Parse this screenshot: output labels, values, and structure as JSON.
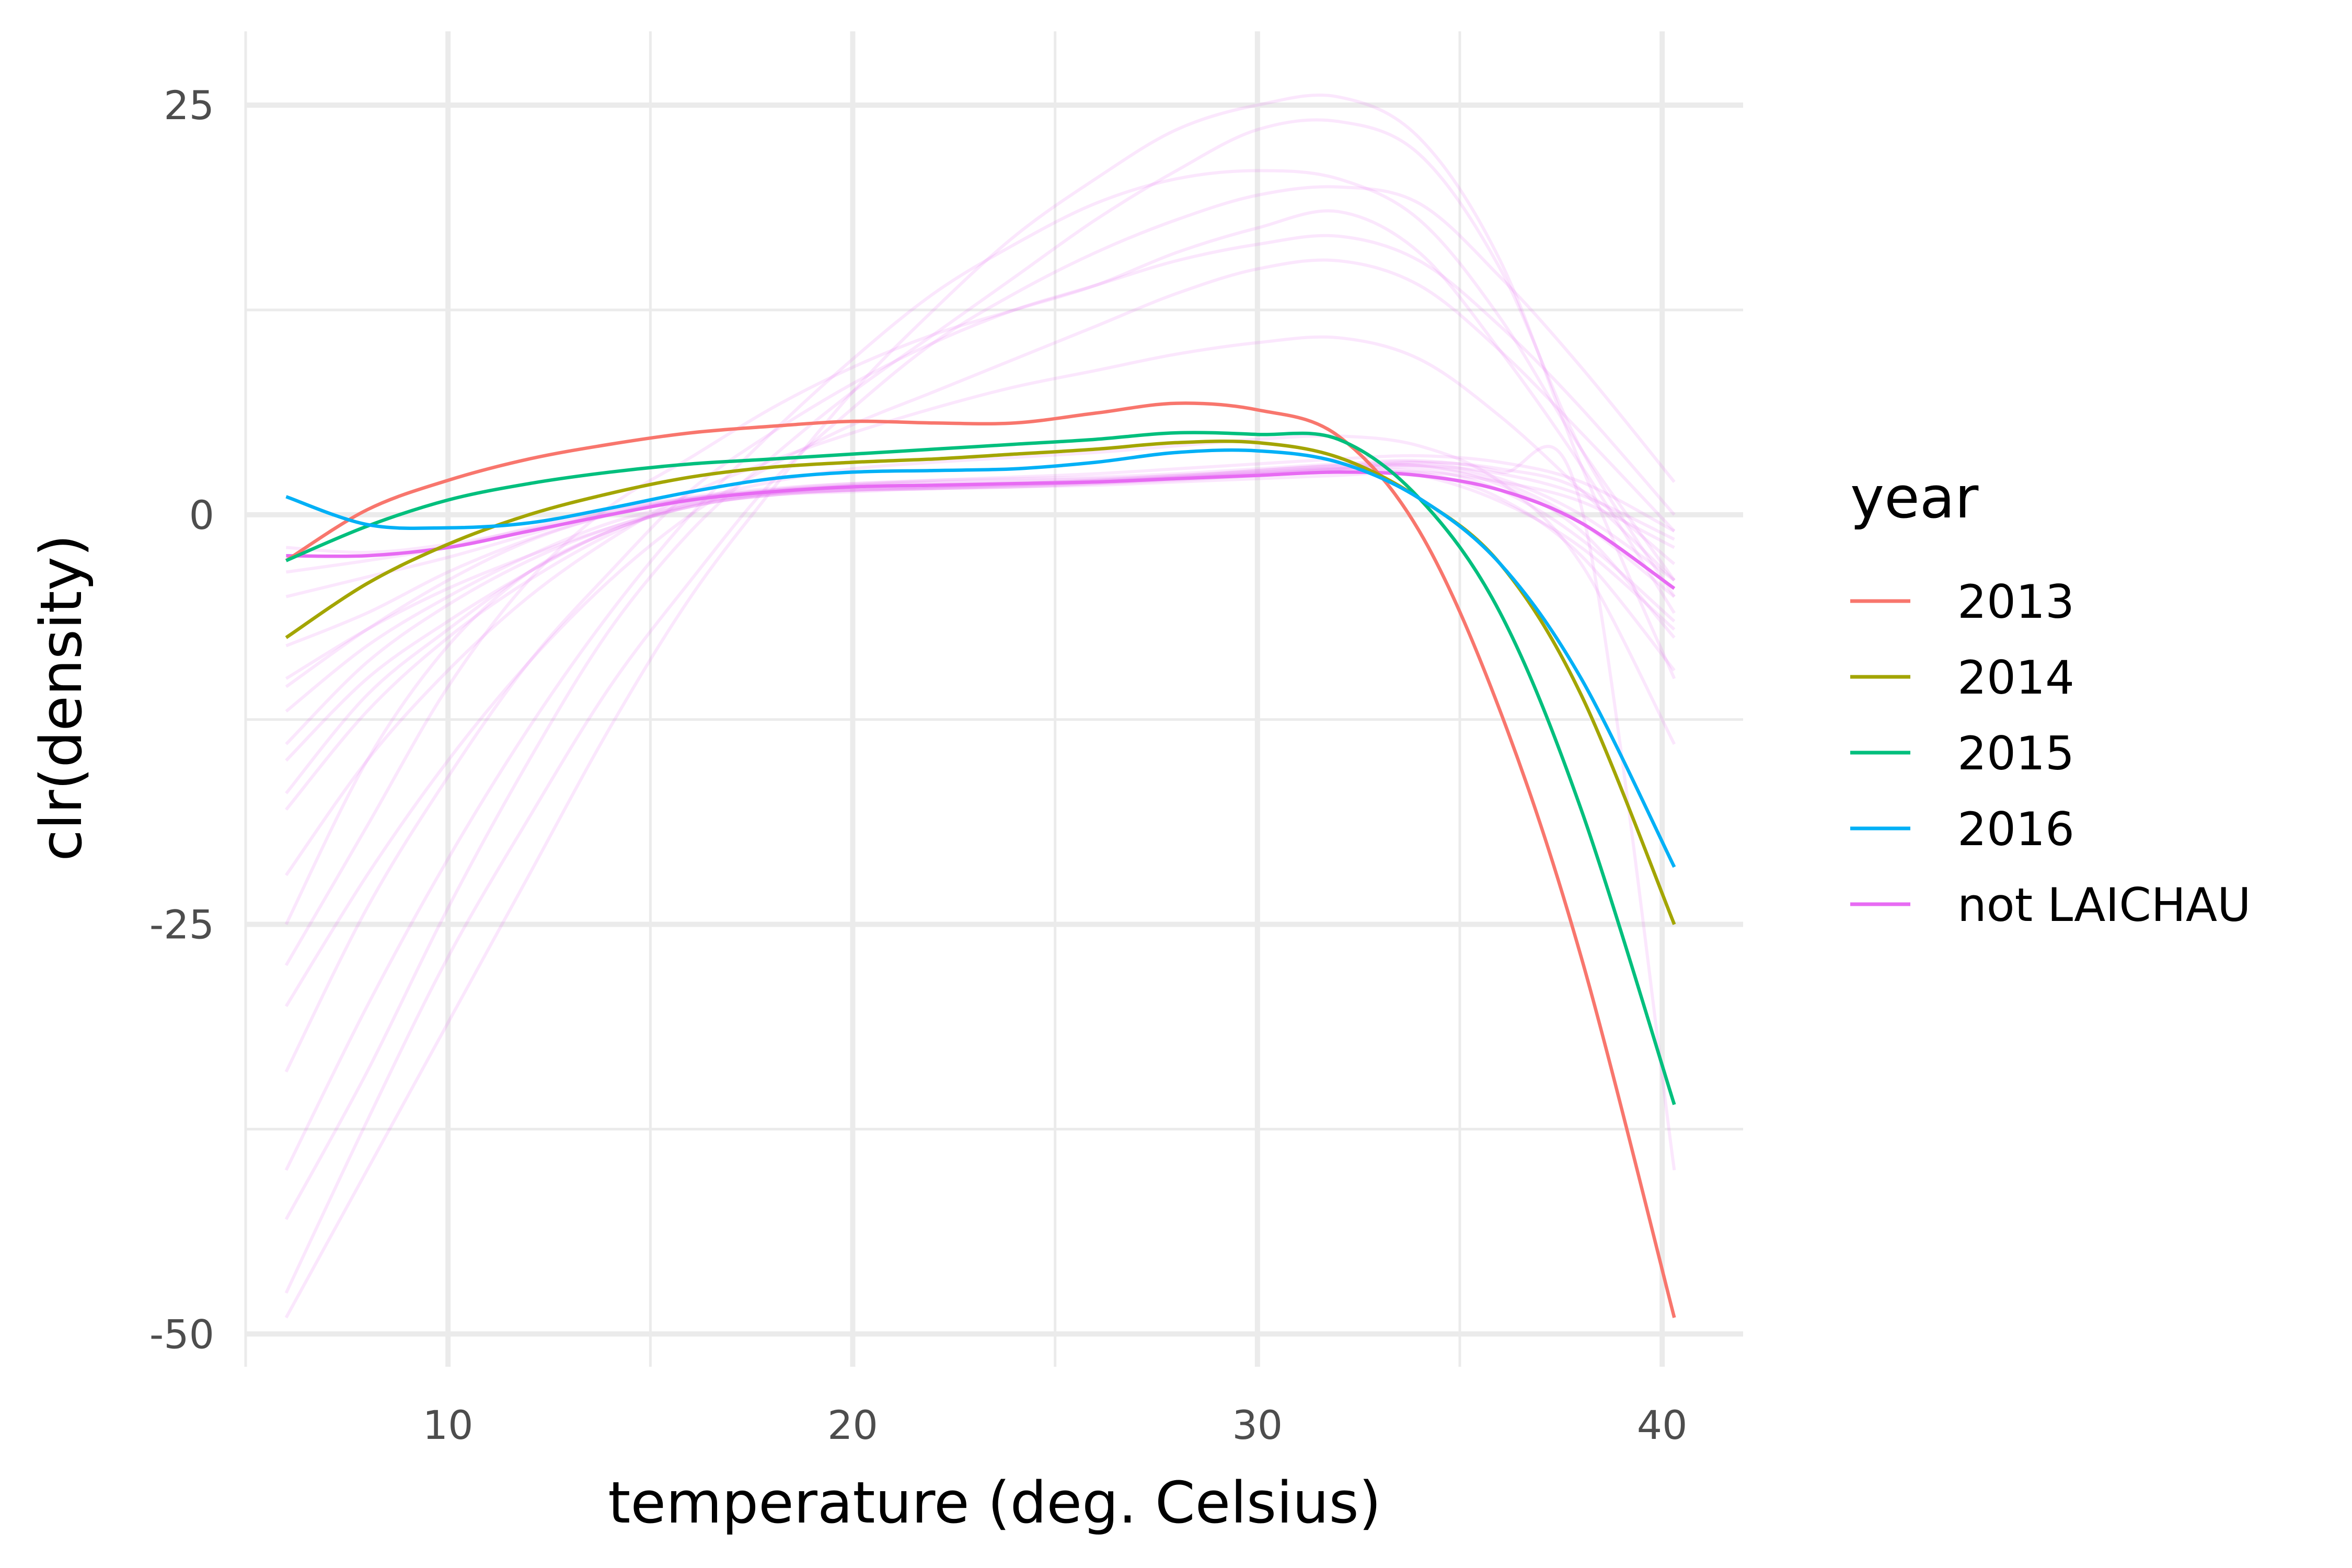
{
  "chart_data": {
    "type": "line",
    "title": "",
    "xlabel": "temperature (deg. Celsius)",
    "ylabel": "clr(density)",
    "xlim": [
      5,
      42
    ],
    "ylim": [
      -52,
      29.5
    ],
    "x_ticks": [
      10,
      20,
      30,
      40
    ],
    "y_ticks": [
      25,
      0,
      -25,
      -50
    ],
    "x_tick_labels": [
      "10",
      "20",
      "30",
      "40"
    ],
    "y_tick_labels": [
      "25",
      "0",
      "-25",
      "-50"
    ],
    "grid": true,
    "legend": {
      "title": "year",
      "position": "right"
    },
    "x": [
      6,
      8,
      10,
      12,
      14,
      16,
      18,
      20,
      22,
      24,
      26,
      28,
      30,
      32,
      34,
      36,
      38,
      40.3
    ],
    "series": [
      {
        "name": "2013",
        "color": "#F8766D",
        "values": [
          -2.8,
          0.3,
          2.1,
          3.4,
          4.3,
          5.0,
          5.4,
          5.7,
          5.6,
          5.6,
          6.2,
          6.8,
          6.4,
          4.8,
          -1.0,
          -12.0,
          -27.0,
          -49.0
        ]
      },
      {
        "name": "2014",
        "color": "#A3A500",
        "values": [
          -7.5,
          -4.2,
          -1.8,
          0.0,
          1.3,
          2.3,
          2.9,
          3.2,
          3.4,
          3.7,
          4.0,
          4.4,
          4.4,
          3.5,
          1.0,
          -3.0,
          -11.0,
          -25.0
        ]
      },
      {
        "name": "2015",
        "color": "#00BF7D",
        "values": [
          -2.8,
          -0.7,
          0.9,
          1.9,
          2.6,
          3.1,
          3.4,
          3.7,
          4.0,
          4.3,
          4.6,
          5.0,
          4.9,
          4.6,
          1.0,
          -6.0,
          -18.0,
          -36.0
        ]
      },
      {
        "name": "2016",
        "color": "#00B0F6",
        "values": [
          1.1,
          -0.6,
          -0.8,
          -0.5,
          0.4,
          1.4,
          2.2,
          2.6,
          2.7,
          2.8,
          3.2,
          3.8,
          3.9,
          3.2,
          1.0,
          -3.0,
          -10.0,
          -21.5
        ]
      },
      {
        "name": "not LAICHAU",
        "color": "#E76BF3",
        "values": [
          -2.5,
          -2.5,
          -2.0,
          -1.0,
          0.0,
          0.9,
          1.4,
          1.7,
          1.8,
          1.9,
          2.0,
          2.2,
          2.4,
          2.6,
          2.4,
          1.5,
          -0.5,
          -4.5
        ]
      }
    ],
    "background_series": [
      {
        "name": "not LAICHAU",
        "color": "#E76BF3",
        "values": [
          -2.0,
          -2.3,
          -1.8,
          -0.9,
          0.1,
          0.8,
          1.3,
          1.5,
          1.6,
          1.7,
          1.8,
          2.0,
          2.2,
          2.4,
          2.6,
          2.0,
          0.8,
          -2.0
        ]
      },
      {
        "name": "not LAICHAU",
        "color": "#E76BF3",
        "values": [
          -3.5,
          -2.8,
          -2.0,
          -0.8,
          0.3,
          1.0,
          1.5,
          1.8,
          1.9,
          2.0,
          2.1,
          2.3,
          2.5,
          2.8,
          3.0,
          2.5,
          1.2,
          -1.5
        ]
      },
      {
        "name": "not LAICHAU",
        "color": "#E76BF3",
        "values": [
          -5.0,
          -3.8,
          -2.6,
          -1.2,
          0.2,
          1.1,
          1.6,
          1.9,
          2.0,
          2.1,
          2.2,
          2.4,
          2.7,
          3.0,
          3.2,
          2.2,
          0.0,
          -4.0
        ]
      },
      {
        "name": "not LAICHAU",
        "color": "#E76BF3",
        "values": [
          -8.0,
          -6.0,
          -3.5,
          -1.5,
          0.0,
          1.0,
          1.5,
          1.7,
          1.8,
          1.9,
          2.1,
          2.3,
          2.6,
          2.9,
          3.0,
          2.0,
          -0.5,
          -5.0
        ]
      },
      {
        "name": "not LAICHAU",
        "color": "#E76BF3",
        "values": [
          -10.5,
          -7.0,
          -4.0,
          -1.6,
          0.0,
          1.0,
          1.4,
          1.6,
          1.7,
          1.8,
          2.0,
          2.2,
          2.5,
          2.8,
          2.8,
          1.5,
          -1.5,
          -6.5
        ]
      },
      {
        "name": "not LAICHAU",
        "color": "#E76BF3",
        "values": [
          -12.0,
          -8.0,
          -5.0,
          -2.5,
          -0.5,
          0.7,
          1.3,
          1.5,
          1.6,
          1.7,
          1.9,
          2.2,
          2.5,
          2.8,
          3.2,
          2.8,
          1.5,
          -3.0
        ]
      },
      {
        "name": "not LAICHAU",
        "color": "#E76BF3",
        "values": [
          -14.0,
          -9.0,
          -5.5,
          -2.8,
          -0.8,
          0.6,
          1.2,
          1.5,
          1.6,
          1.8,
          2.0,
          2.3,
          2.7,
          3.0,
          3.0,
          1.8,
          -1.0,
          -7.5
        ]
      },
      {
        "name": "not LAICHAU",
        "color": "#E76BF3",
        "values": [
          -17.0,
          -11.0,
          -7.0,
          -3.5,
          -1.0,
          0.5,
          1.2,
          1.4,
          1.6,
          1.7,
          1.9,
          2.1,
          2.4,
          2.7,
          2.6,
          1.0,
          -2.5,
          -9.5
        ]
      },
      {
        "name": "not LAICHAU",
        "color": "#E76BF3",
        "values": [
          -25.0,
          -15.0,
          -8.0,
          -3.5,
          -1.0,
          0.5,
          1.2,
          1.5,
          1.7,
          1.9,
          2.1,
          2.4,
          2.6,
          2.8,
          2.4,
          0.8,
          -2.0,
          -7.0
        ]
      },
      {
        "name": "not LAICHAU",
        "color": "#E76BF3",
        "values": [
          -27.5,
          -19.0,
          -10.5,
          -4.0,
          0.5,
          3.5,
          6.5,
          9.0,
          11.0,
          12.5,
          14.0,
          16.0,
          17.5,
          18.5,
          16.0,
          10.0,
          3.0,
          -6.0
        ]
      },
      {
        "name": "not LAICHAU",
        "color": "#E76BF3",
        "values": [
          -43.0,
          -34.0,
          -24.0,
          -15.0,
          -7.0,
          -1.0,
          3.5,
          7.5,
          11.0,
          14.5,
          18.0,
          21.0,
          23.5,
          24.0,
          22.0,
          15.0,
          4.0,
          -5.0
        ]
      },
      {
        "name": "not LAICHAU",
        "color": "#E76BF3",
        "values": [
          -49.0,
          -40.0,
          -31.0,
          -22.0,
          -13.0,
          -5.0,
          1.5,
          7.5,
          12.5,
          17.0,
          20.5,
          23.5,
          25.0,
          25.5,
          23.0,
          15.5,
          3.0,
          -10.0
        ]
      },
      {
        "name": "not LAICHAU",
        "color": "#E76BF3",
        "values": [
          -47.5,
          -37.0,
          -27.0,
          -18.5,
          -10.5,
          -4.0,
          2.0,
          6.5,
          10.5,
          13.5,
          16.0,
          18.0,
          19.5,
          20.0,
          19.0,
          14.5,
          9.0,
          2.0
        ]
      },
      {
        "name": "not LAICHAU",
        "color": "#E76BF3",
        "values": [
          -34.0,
          -24.0,
          -16.0,
          -9.0,
          -3.5,
          1.5,
          5.0,
          8.0,
          10.5,
          12.5,
          14.0,
          15.5,
          16.5,
          17.0,
          15.5,
          11.5,
          6.5,
          0.0
        ]
      },
      {
        "name": "not LAICHAU",
        "color": "#E76BF3",
        "values": [
          -22.0,
          -15.0,
          -9.5,
          -5.0,
          -1.5,
          1.3,
          3.3,
          5.0,
          6.5,
          7.8,
          8.8,
          9.8,
          10.5,
          10.8,
          9.5,
          6.0,
          1.5,
          -4.0
        ]
      },
      {
        "name": "not LAICHAU",
        "color": "#E76BF3",
        "values": [
          -40.0,
          -30.0,
          -21.0,
          -13.0,
          -6.0,
          0.0,
          5.0,
          9.5,
          13.5,
          16.5,
          19.0,
          20.5,
          21.0,
          20.5,
          18.0,
          12.0,
          4.0,
          -4.0
        ]
      },
      {
        "name": "not LAICHAU",
        "color": "#E76BF3",
        "values": [
          -30.0,
          -22.0,
          -15.0,
          -9.0,
          -4.0,
          0.0,
          3.0,
          5.5,
          7.5,
          9.5,
          11.5,
          13.5,
          15.0,
          15.5,
          14.0,
          10.0,
          5.0,
          -1.0
        ]
      },
      {
        "name": "not LAICHAU",
        "color": "#E76BF3",
        "values": [
          -18.0,
          -12.0,
          -7.5,
          -4.0,
          -1.2,
          0.8,
          2.0,
          2.8,
          3.2,
          3.5,
          3.8,
          4.2,
          4.6,
          4.8,
          4.2,
          2.0,
          -3.0,
          -14.0
        ]
      },
      {
        "name": "not LAICHAU",
        "color": "#E76BF3",
        "values": [
          -10.0,
          -7.0,
          -4.5,
          -2.5,
          -0.8,
          0.5,
          1.3,
          1.8,
          2.1,
          2.3,
          2.5,
          2.8,
          3.1,
          3.4,
          3.6,
          3.2,
          2.0,
          -1.0
        ]
      },
      {
        "name": "not LAICHAU",
        "color": "#E76BF3",
        "values": [
          -15.0,
          -10.0,
          -6.5,
          -3.5,
          -1.0,
          0.6,
          1.5,
          1.9,
          2.1,
          2.2,
          2.3,
          2.5,
          2.8,
          3.1,
          3.3,
          2.6,
          0.5,
          -40.0
        ]
      }
    ]
  }
}
